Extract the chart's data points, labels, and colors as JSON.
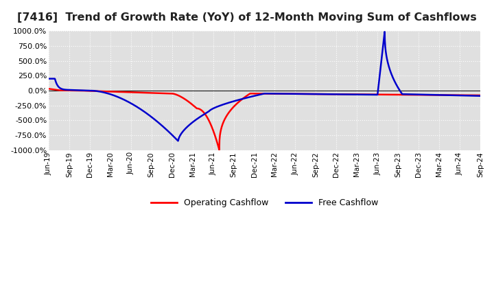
{
  "title": "[7416]  Trend of Growth Rate (YoY) of 12-Month Moving Sum of Cashflows",
  "title_fontsize": 11.5,
  "background_color": "#ffffff",
  "plot_bg_color": "#e0e0e0",
  "grid_color": "#ffffff",
  "ylim": [
    -1000,
    1000
  ],
  "yticks": [
    -1000,
    -750,
    -500,
    -250,
    0,
    250,
    500,
    750,
    1000
  ],
  "line_colors": {
    "operating": "#ff0000",
    "free": "#0000cc"
  },
  "legend": {
    "operating": "Operating Cashflow",
    "free": "Free Cashflow"
  },
  "x_labels": [
    "Jun-19",
    "Sep-19",
    "Dec-19",
    "Mar-20",
    "Jun-20",
    "Sep-20",
    "Dec-20",
    "Mar-21",
    "Jun-21",
    "Sep-21",
    "Dec-21",
    "Mar-22",
    "Jun-22",
    "Sep-22",
    "Dec-22",
    "Mar-23",
    "Jun-23",
    "Sep-23",
    "Dec-23",
    "Mar-24",
    "Jun-24",
    "Sep-24"
  ]
}
